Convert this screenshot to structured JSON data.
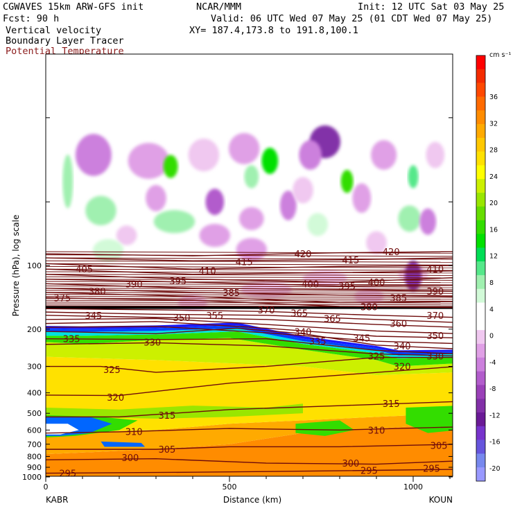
{
  "header": {
    "model": "CGWAVES 15km ARW-GFS init",
    "org": "NCAR/MMM",
    "init": "Init: 12 UTC Sat 03 May 25",
    "fcst": "Fcst:   90 h",
    "valid": "Valid: 06 UTC Wed 07 May 25 (01 CDT Wed 07 May 25)",
    "field1": "Vertical velocity",
    "xy": "XY= 187.4,173.8 to 191.8,100.1",
    "field2": "Boundary Layer Tracer",
    "field3": "Potential Temperature"
  },
  "colors": {
    "theta_line": "#6e0b0b",
    "title_red": "#8b1a1a"
  },
  "chart_data": {
    "type": "heatmap",
    "xlabel": "Distance (km)",
    "ylabel": "Pressure (hPa), log scale",
    "x_ticks": [
      {
        "value": 0,
        "label": "0"
      },
      {
        "value": 500,
        "label": "500"
      },
      {
        "value": 1000,
        "label": "1000"
      }
    ],
    "y_ticks": [
      {
        "value": 100,
        "label": "100"
      },
      {
        "value": 200,
        "label": "200"
      },
      {
        "value": 300,
        "label": "300"
      },
      {
        "value": 400,
        "label": "400"
      },
      {
        "value": 500,
        "label": "500"
      },
      {
        "value": 600,
        "label": "600"
      },
      {
        "value": 700,
        "label": "700"
      },
      {
        "value": 800,
        "label": "800"
      },
      {
        "value": 900,
        "label": "900"
      },
      {
        "value": 1000,
        "label": "1000"
      }
    ],
    "endpoint_left": "KABR",
    "endpoint_right": "KOUN",
    "colorbar": {
      "units": "cm s⁻¹",
      "labels": [
        "36",
        "32",
        "28",
        "24",
        "20",
        "16",
        "12",
        "8",
        "4",
        "0",
        "-4",
        "-8",
        "-12",
        "-16",
        "-20"
      ],
      "colors": [
        "#ff0000",
        "#f42b00",
        "#ff4800",
        "#ff6a00",
        "#ff8c00",
        "#ffaa00",
        "#ffc800",
        "#ffe100",
        "#ffff00",
        "#ccf000",
        "#99e600",
        "#66dd00",
        "#33dd00",
        "#00e000",
        "#00dd55",
        "#55e88a",
        "#a0f0b0",
        "#d2fad8",
        "#ffffff",
        "#ffffff",
        "#f0c8f0",
        "#e0a0e6",
        "#cc80dd",
        "#b25ccc",
        "#9a40b8",
        "#8230a8",
        "#6a1a96",
        "#7733cc",
        "#6655dd",
        "#7788ee",
        "#9999ff"
      ]
    },
    "theta_labels": [
      {
        "text": "420",
        "x": 700,
        "p": 88
      },
      {
        "text": "420",
        "x": 940,
        "p": 86
      },
      {
        "text": "415",
        "x": 540,
        "p": 96
      },
      {
        "text": "415",
        "x": 830,
        "p": 94
      },
      {
        "text": "410",
        "x": 440,
        "p": 106
      },
      {
        "text": "410",
        "x": 1060,
        "p": 104
      },
      {
        "text": "405",
        "x": 105,
        "p": 104
      },
      {
        "text": "400",
        "x": 720,
        "p": 122
      },
      {
        "text": "400",
        "x": 900,
        "p": 120
      },
      {
        "text": "395",
        "x": 360,
        "p": 118
      },
      {
        "text": "395",
        "x": 820,
        "p": 125
      },
      {
        "text": "390",
        "x": 240,
        "p": 122
      },
      {
        "text": "390",
        "x": 1060,
        "p": 132
      },
      {
        "text": "385",
        "x": 505,
        "p": 134
      },
      {
        "text": "385",
        "x": 960,
        "p": 142
      },
      {
        "text": "380",
        "x": 140,
        "p": 132
      },
      {
        "text": "380",
        "x": 880,
        "p": 157
      },
      {
        "text": "375",
        "x": 45,
        "p": 142
      },
      {
        "text": "370",
        "x": 600,
        "p": 162
      },
      {
        "text": "370",
        "x": 1060,
        "p": 172
      },
      {
        "text": "365",
        "x": 690,
        "p": 168
      },
      {
        "text": "365",
        "x": 780,
        "p": 178
      },
      {
        "text": "360",
        "x": 960,
        "p": 188
      },
      {
        "text": "355",
        "x": 460,
        "p": 172
      },
      {
        "text": "350",
        "x": 370,
        "p": 176
      },
      {
        "text": "350",
        "x": 1060,
        "p": 214
      },
      {
        "text": "345",
        "x": 130,
        "p": 172
      },
      {
        "text": "345",
        "x": 860,
        "p": 220
      },
      {
        "text": "340",
        "x": 700,
        "p": 206
      },
      {
        "text": "340",
        "x": 970,
        "p": 240
      },
      {
        "text": "335",
        "x": 740,
        "p": 228
      },
      {
        "text": "335",
        "x": 70,
        "p": 222
      },
      {
        "text": "330",
        "x": 290,
        "p": 230
      },
      {
        "text": "330",
        "x": 1060,
        "p": 268
      },
      {
        "text": "325",
        "x": 180,
        "p": 310
      },
      {
        "text": "325",
        "x": 900,
        "p": 268
      },
      {
        "text": "320",
        "x": 190,
        "p": 420
      },
      {
        "text": "320",
        "x": 970,
        "p": 300
      },
      {
        "text": "315",
        "x": 330,
        "p": 510
      },
      {
        "text": "315",
        "x": 940,
        "p": 450
      },
      {
        "text": "310",
        "x": 240,
        "p": 610
      },
      {
        "text": "310",
        "x": 900,
        "p": 600
      },
      {
        "text": "305",
        "x": 330,
        "p": 740
      },
      {
        "text": "305",
        "x": 1070,
        "p": 710
      },
      {
        "text": "300",
        "x": 230,
        "p": 810
      },
      {
        "text": "300",
        "x": 830,
        "p": 860
      },
      {
        "text": "295",
        "x": 60,
        "p": 960
      },
      {
        "text": "295",
        "x": 880,
        "p": 930
      },
      {
        "text": "295",
        "x": 1050,
        "p": 910
      }
    ]
  }
}
